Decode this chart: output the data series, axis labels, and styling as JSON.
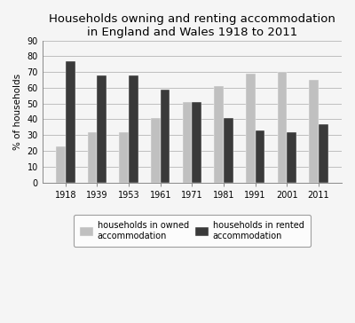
{
  "title": "Households owning and renting accommodation\nin England and Wales 1918 to 2011",
  "years": [
    "1918",
    "1939",
    "1953",
    "1961",
    "1971",
    "1981",
    "1991",
    "2001",
    "2011"
  ],
  "owned": [
    23,
    32,
    32,
    41,
    51,
    61,
    69,
    70,
    65
  ],
  "rented": [
    77,
    68,
    68,
    59,
    51,
    41,
    33,
    32,
    37
  ],
  "owned_color": "#c0c0c0",
  "rented_color": "#3a3a3a",
  "ylabel": "% of households",
  "ylim": [
    0,
    90
  ],
  "yticks": [
    0,
    10,
    20,
    30,
    40,
    50,
    60,
    70,
    80,
    90
  ],
  "legend_owned": "households in owned\naccommodation",
  "legend_rented": "households in rented\naccommodation",
  "bar_width": 0.3,
  "title_fontsize": 9.5,
  "axis_fontsize": 7.5,
  "legend_fontsize": 7,
  "tick_fontsize": 7,
  "background_color": "#f5f5f5"
}
